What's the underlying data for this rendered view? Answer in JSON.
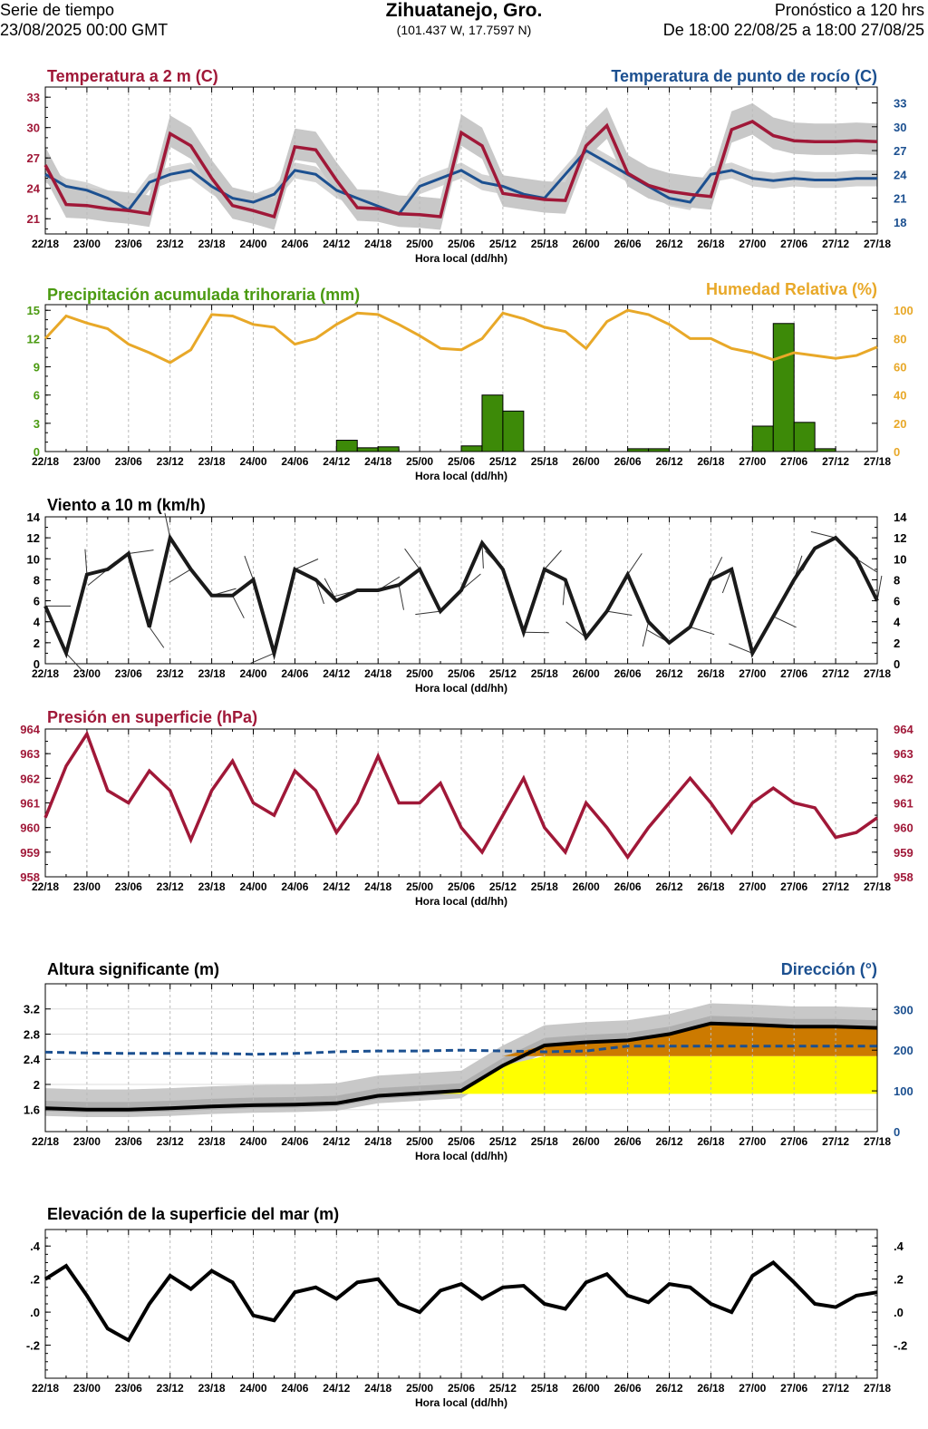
{
  "header": {
    "left_line1": "Serie de tiempo",
    "left_line2": "23/08/2025 00:00 GMT",
    "title": "Zihuatanejo, Gro.",
    "coords": "(101.437 W, 17.7597 N)",
    "right_line1": "Pronóstico a 120 hrs",
    "right_line2": "De 18:00 22/08/25 a 18:00 27/08/25"
  },
  "colors": {
    "temp": "#a01838",
    "dew": "#1c5090",
    "precip_title": "#4a9a10",
    "precip_bar": "#3d8a08",
    "rh": "#e8a828",
    "wind": "#1a1a1a",
    "pressure": "#a01838",
    "wave_dir": "#1c5090",
    "band_gray": "#c8c8c8",
    "band_gray_dark": "#9a9a9a",
    "fill_yellow": "#ffff00",
    "fill_orange": "#cc7a00"
  },
  "x_axis": {
    "label": "Hora local (dd/hh)",
    "ticks": [
      "22/18",
      "23/00",
      "23/06",
      "23/12",
      "23/18",
      "24/00",
      "24/06",
      "24/12",
      "24/18",
      "25/00",
      "25/06",
      "25/12",
      "25/18",
      "26/00",
      "26/06",
      "26/12",
      "26/18",
      "27/00",
      "27/06",
      "27/12",
      "27/18"
    ]
  },
  "chart_data": [
    {
      "type": "line",
      "id": "temperature",
      "title_left": "Temperatura a 2 m (C)",
      "title_right": "Temperatura de punto de rocío (C)",
      "ylim_left": [
        19.5,
        34
      ],
      "yticks_left": [
        21,
        24,
        27,
        30,
        33
      ],
      "ylim_right": [
        16.5,
        35
      ],
      "yticks_right": [
        18,
        21,
        24,
        27,
        30,
        33
      ],
      "x_hours": [
        0,
        3,
        6,
        9,
        12,
        15,
        18,
        21,
        24,
        27,
        30,
        33,
        36,
        39,
        42,
        45,
        48,
        51,
        54,
        57,
        60,
        63,
        66,
        69,
        72,
        75,
        78,
        81,
        84,
        87,
        90,
        93,
        96,
        99,
        102,
        105,
        108,
        111,
        114,
        117,
        120
      ],
      "series": [
        {
          "name": "Temperatura a 2 m (C)",
          "axis": "left",
          "values": [
            26.3,
            22.4,
            22.3,
            22.0,
            21.8,
            21.5,
            29.4,
            28.2,
            25.0,
            22.3,
            21.8,
            21.2,
            28.1,
            27.8,
            24.8,
            22.1,
            22.0,
            21.5,
            21.4,
            21.2,
            29.5,
            28.2,
            23.5,
            23.2,
            22.9,
            22.8,
            28.2,
            30.2,
            25.5,
            24.3,
            23.7,
            23.4,
            23.2,
            29.8,
            30.6,
            29.2,
            28.7,
            28.6,
            28.6,
            28.7,
            28.6
          ]
        },
        {
          "name": "Temperatura de punto de rocío (C)",
          "axis": "right",
          "values": [
            24.0,
            22.5,
            22.0,
            21.0,
            19.5,
            23.0,
            24.0,
            24.5,
            22.5,
            21.0,
            20.5,
            21.5,
            24.5,
            24.0,
            22.0,
            21.0,
            20.0,
            19.0,
            22.5,
            23.5,
            24.5,
            23.0,
            22.5,
            21.5,
            21.0,
            24.0,
            27.0,
            25.5,
            24.0,
            22.5,
            21.0,
            20.5,
            24.0,
            24.5,
            23.5,
            23.2,
            23.5,
            23.3,
            23.3,
            23.5,
            23.5
          ]
        }
      ]
    },
    {
      "type": "bar",
      "id": "precipitation",
      "title_left": "Precipitación acumulada trihoraria (mm)",
      "title_right": "Humedad Relativa (%)",
      "ylim_left": [
        0,
        15.6
      ],
      "yticks_left": [
        0,
        3,
        6,
        9,
        12,
        15
      ],
      "ylim_right": [
        0,
        104
      ],
      "yticks_right": [
        0,
        20,
        40,
        60,
        80,
        100
      ],
      "bar_x_hours": [
        21,
        24,
        27,
        30,
        33,
        36,
        39,
        42,
        45,
        48,
        51,
        54,
        57,
        60,
        63,
        66,
        69,
        72,
        75,
        78,
        81,
        84,
        87,
        90,
        93,
        96,
        99,
        102,
        105,
        108,
        111,
        114,
        117,
        120
      ],
      "bar_values": [
        0,
        0,
        0,
        0,
        0,
        0,
        0,
        0,
        1.2,
        0.4,
        0.5,
        0,
        0,
        0,
        0.6,
        6.0,
        4.3,
        0,
        0,
        0,
        0,
        0,
        0.3,
        0.3,
        0,
        0,
        0,
        0,
        2.7,
        13.6,
        3.1,
        0.3,
        0,
        0
      ],
      "series": [
        {
          "name": "Humedad Relativa (%)",
          "axis": "right",
          "x_hours": [
            0,
            3,
            6,
            9,
            12,
            15,
            18,
            21,
            24,
            27,
            30,
            33,
            36,
            39,
            42,
            45,
            48,
            51,
            54,
            57,
            60,
            63,
            66,
            69,
            72,
            75,
            78,
            81,
            84,
            87,
            90,
            93,
            96,
            99,
            102,
            105,
            108,
            111,
            114,
            117,
            120
          ],
          "values": [
            80,
            96,
            91,
            87,
            76,
            70,
            63,
            72,
            97,
            96,
            90,
            88,
            76,
            80,
            90,
            98,
            97,
            90,
            82,
            73,
            72,
            80,
            98,
            94,
            88,
            85,
            73,
            92,
            100,
            97,
            90,
            80,
            80,
            73,
            70,
            65,
            70,
            68,
            66,
            68,
            74
          ]
        }
      ]
    },
    {
      "type": "line",
      "id": "wind",
      "title_left": "Viento a 10 m (km/h)",
      "ylim": [
        0,
        14
      ],
      "yticks": [
        0,
        2,
        4,
        6,
        8,
        10,
        12,
        14
      ],
      "x_hours": [
        0,
        3,
        6,
        9,
        12,
        15,
        18,
        21,
        24,
        27,
        30,
        33,
        36,
        39,
        42,
        45,
        48,
        51,
        54,
        57,
        60,
        63,
        66,
        69,
        72,
        75,
        78,
        81,
        84,
        87,
        90,
        93,
        96,
        99,
        102,
        105,
        108,
        111,
        114,
        117,
        120
      ],
      "series": [
        {
          "name": "Viento a 10 m (km/h)",
          "values": [
            5.5,
            1.0,
            8.5,
            9.0,
            10.5,
            3.5,
            12.0,
            9.0,
            6.5,
            6.5,
            8.0,
            1.0,
            9.0,
            8.0,
            6.0,
            7.0,
            7.0,
            7.5,
            9.0,
            5.0,
            7.0,
            11.5,
            9.0,
            3.0,
            9.0,
            8.0,
            2.5,
            5.0,
            8.5,
            4.0,
            2.0,
            3.5,
            8.0,
            9.0,
            1.0,
            4.5,
            8.0,
            11.0,
            12.0,
            10.0,
            6.0
          ]
        }
      ]
    },
    {
      "type": "line",
      "id": "pressure",
      "title_left": "Presión en superficie (hPa)",
      "ylim": [
        958,
        964
      ],
      "yticks": [
        958,
        959,
        960,
        961,
        962,
        963,
        964
      ],
      "x_hours": [
        0,
        3,
        6,
        9,
        12,
        15,
        18,
        21,
        24,
        27,
        30,
        33,
        36,
        39,
        42,
        45,
        48,
        51,
        54,
        57,
        60,
        63,
        66,
        69,
        72,
        75,
        78,
        81,
        84,
        87,
        90,
        93,
        96,
        99,
        102,
        105,
        108,
        111,
        114,
        117,
        120
      ],
      "series": [
        {
          "name": "Presión en superficie (hPa)",
          "values": [
            960.4,
            962.5,
            963.8,
            961.5,
            961.0,
            962.3,
            961.5,
            959.5,
            961.5,
            962.7,
            961.0,
            960.5,
            962.3,
            961.5,
            959.8,
            961.0,
            962.9,
            961.0,
            961.0,
            961.8,
            960.0,
            959.0,
            960.5,
            962.0,
            960.0,
            959.0,
            961.0,
            960.0,
            958.8,
            960.0,
            961.0,
            962.0,
            961.0,
            959.8,
            961.0,
            961.6,
            961.0,
            960.8,
            959.6,
            959.8,
            960.4
          ]
        }
      ]
    },
    {
      "type": "area",
      "id": "waves",
      "title_left": "Altura significante (m)",
      "title_right": "Dirección (°)",
      "ylim_left": [
        1.25,
        3.6
      ],
      "yticks_left": [
        1.6,
        2.0,
        2.4,
        2.8,
        3.2
      ],
      "ytick_labels_left": [
        "1.6",
        "2",
        "2.4",
        "2.8",
        "3.2"
      ],
      "ylim_right": [
        0,
        363
      ],
      "yticks_right": [
        0,
        100,
        200,
        300
      ],
      "x_hours": [
        0,
        6,
        12,
        18,
        24,
        30,
        36,
        42,
        48,
        54,
        60,
        66,
        72,
        78,
        84,
        90,
        96,
        102,
        108,
        114,
        120
      ],
      "series": [
        {
          "name": "Altura significante (m)",
          "axis": "left",
          "values": [
            1.62,
            1.6,
            1.6,
            1.62,
            1.65,
            1.67,
            1.68,
            1.7,
            1.82,
            1.86,
            1.9,
            2.3,
            2.62,
            2.67,
            2.7,
            2.8,
            2.97,
            2.95,
            2.92,
            2.92,
            2.9
          ]
        },
        {
          "name": "Dirección (°)",
          "axis": "right",
          "dashed": true,
          "values": [
            195,
            193,
            192,
            192,
            192,
            190,
            192,
            196,
            198,
            198,
            200,
            198,
            196,
            198,
            210,
            210,
            210,
            210,
            210,
            210,
            210
          ]
        }
      ]
    },
    {
      "type": "line",
      "id": "sea_level",
      "title_left": "Elevación de la superficie del mar (m)",
      "ylim": [
        -0.4,
        0.5
      ],
      "yticks": [
        -0.2,
        0.0,
        0.2,
        0.4
      ],
      "ytick_labels": [
        "-.2",
        ".0",
        ".2",
        ".4"
      ],
      "x_hours": [
        0,
        3,
        6,
        9,
        12,
        15,
        18,
        21,
        24,
        27,
        30,
        33,
        36,
        39,
        42,
        45,
        48,
        51,
        54,
        57,
        60,
        63,
        66,
        69,
        72,
        75,
        78,
        81,
        84,
        87,
        90,
        93,
        96,
        99,
        102,
        105,
        108,
        111,
        114,
        117,
        120
      ],
      "series": [
        {
          "name": "Elevación de la superficie del mar (m)",
          "values": [
            0.2,
            0.28,
            0.1,
            -0.1,
            -0.17,
            0.05,
            0.22,
            0.14,
            0.25,
            0.18,
            -0.02,
            -0.05,
            0.12,
            0.15,
            0.08,
            0.18,
            0.2,
            0.05,
            0.0,
            0.13,
            0.17,
            0.08,
            0.15,
            0.16,
            0.05,
            0.02,
            0.18,
            0.23,
            0.1,
            0.06,
            0.17,
            0.15,
            0.05,
            0.0,
            0.22,
            0.3,
            0.18,
            0.05,
            0.03,
            0.1,
            0.12
          ]
        }
      ]
    }
  ]
}
